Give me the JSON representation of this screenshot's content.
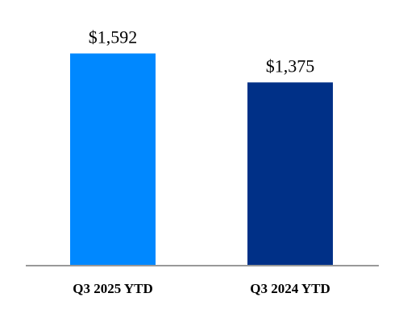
{
  "chart_data": {
    "type": "bar",
    "categories": [
      "Q3 2025 YTD",
      "Q3 2024 YTD"
    ],
    "values": [
      1592,
      1375
    ],
    "value_labels": [
      "$1,592",
      "$1,375"
    ],
    "colors": [
      "#0088FF",
      "#003087"
    ],
    "axis_color": "#999999",
    "ylim": [
      0,
      1800
    ],
    "title": "",
    "xlabel": "",
    "ylabel": "",
    "grid": false,
    "legend": "none"
  }
}
